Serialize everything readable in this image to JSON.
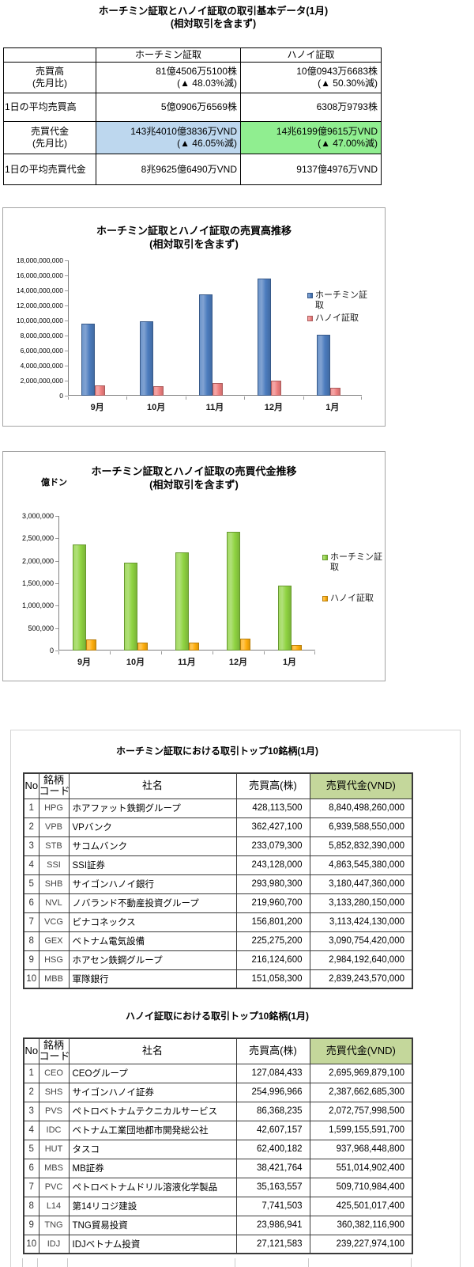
{
  "page_title": {
    "line1": "ホーチミン証取とハノイ証取の取引基本データ(1月)",
    "line2": "(相対取引を含まず)"
  },
  "colors": {
    "hcmc_value_highlight": "#BDD7EE",
    "hanoi_value_highlight": "#90EE90",
    "table_header_highlight": "#C4D79B"
  },
  "summary_table": {
    "col_headers": [
      "ホーチミン証取",
      "ハノイ証取"
    ],
    "rows": [
      {
        "label1": "売買高",
        "label2": "(先月比)",
        "hcmc1": "81億4506万5100株",
        "hcmc2": "(▲ 48.03%減)",
        "hanoi1": "10億0943万6683株",
        "hanoi2": "(▲ 50.30%減)"
      },
      {
        "label1": "1日の平均売買高",
        "hcmc1": "5億0906万6569株",
        "hanoi1": "6308万9793株"
      },
      {
        "label1": "売買代金",
        "label2": "(先月比)",
        "hcmc1": "143兆4010億3836万VND",
        "hcmc2": "(▲ 46.05%減)",
        "hanoi1": "14兆6199億9615万VND",
        "hanoi2": "(▲ 47.00%減)"
      },
      {
        "label1": "1日の平均売買代金",
        "hcmc1": "8兆9625億6490万VND",
        "hanoi1": "9137億4976万VND"
      }
    ]
  },
  "chart_data": [
    {
      "type": "bar",
      "title_line1": "ホーチミン証取とハノイ証取の売買高推移",
      "title_line2": "(相対取引を含まず)",
      "categories": [
        "9月",
        "10月",
        "11月",
        "12月",
        "1月"
      ],
      "series": [
        {
          "name": "ホーチミン証取",
          "color": "#4C7CBE",
          "values": [
            9550000000,
            9900000000,
            13500000000,
            15550000000,
            8100000000
          ]
        },
        {
          "name": "ハノイ証取",
          "color": "#EF8080",
          "values": [
            1350000000,
            1250000000,
            1650000000,
            2050000000,
            1000000000
          ]
        }
      ],
      "ylim": [
        0,
        18000000000
      ],
      "ytick_step": 2000000000,
      "grid": false,
      "legend_position": "right"
    },
    {
      "type": "bar",
      "title_line1": "ホーチミン証取とハノイ証取の売買代金推移",
      "title_line2": "(相対取引を含まず)",
      "unit_label": "億ドン",
      "categories": [
        "9月",
        "10月",
        "11月",
        "12月",
        "1月"
      ],
      "series": [
        {
          "name": "ホーチミン証取",
          "color": "#8FD341",
          "values": [
            2370000,
            1950000,
            2190000,
            2650000,
            1440000
          ]
        },
        {
          "name": "ハノイ証取",
          "color": "#FFAE0C",
          "values": [
            255000,
            175000,
            175000,
            265000,
            130000
          ]
        }
      ],
      "ylim": [
        0,
        3000000
      ],
      "ytick_step": 500000,
      "grid": false,
      "legend_position": "right"
    }
  ],
  "top10_hcmc": {
    "title": "ホーチミン証取における取引トップ10銘柄(1月)",
    "headers": {
      "no": "No",
      "code1": "銘柄",
      "code2": "コード",
      "name": "社名",
      "volume": "売買高(株)",
      "value": "売買代金(VND)"
    },
    "rows": [
      {
        "no": "1",
        "code": "HPG",
        "name": "ホアファット鉄鋼グループ",
        "volume": "428,113,500",
        "value": "8,840,498,260,000"
      },
      {
        "no": "2",
        "code": "VPB",
        "name": "VPバンク",
        "volume": "362,427,100",
        "value": "6,939,588,550,000"
      },
      {
        "no": "3",
        "code": "STB",
        "name": "サコムバンク",
        "volume": "233,079,300",
        "value": "5,852,832,390,000"
      },
      {
        "no": "4",
        "code": "SSI",
        "name": "SSI証券",
        "volume": "243,128,000",
        "value": "4,863,545,380,000"
      },
      {
        "no": "5",
        "code": "SHB",
        "name": "サイゴンハノイ銀行",
        "volume": "293,980,300",
        "value": "3,180,447,360,000"
      },
      {
        "no": "6",
        "code": "NVL",
        "name": "ノバランド不動産投資グループ",
        "volume": "219,960,700",
        "value": "3,133,280,150,000"
      },
      {
        "no": "7",
        "code": "VCG",
        "name": "ビナコネックス",
        "volume": "156,801,200",
        "value": "3,113,424,130,000"
      },
      {
        "no": "8",
        "code": "GEX",
        "name": "ベトナム電気設備",
        "volume": "225,275,200",
        "value": "3,090,754,420,000"
      },
      {
        "no": "9",
        "code": "HSG",
        "name": "ホアセン鉄鋼グループ",
        "volume": "216,124,600",
        "value": "2,984,192,640,000"
      },
      {
        "no": "10",
        "code": "MBB",
        "name": "軍隊銀行",
        "volume": "151,058,300",
        "value": "2,839,243,570,000"
      }
    ]
  },
  "top10_hanoi": {
    "title": "ハノイ証取における取引トップ10銘柄(1月)",
    "headers": {
      "no": "No",
      "code1": "銘柄",
      "code2": "コード",
      "name": "社名",
      "volume": "売買高(株)",
      "value": "売買代金(VND)"
    },
    "rows": [
      {
        "no": "1",
        "code": "CEO",
        "name": "CEOグループ",
        "volume": "127,084,433",
        "value": "2,695,969,879,100"
      },
      {
        "no": "2",
        "code": "SHS",
        "name": "サイゴンハノイ証券",
        "volume": "254,996,966",
        "value": "2,387,662,685,300"
      },
      {
        "no": "3",
        "code": "PVS",
        "name": "ペトロベトナムテクニカルサービス",
        "volume": "86,368,235",
        "value": "2,072,757,998,500"
      },
      {
        "no": "4",
        "code": "IDC",
        "name": "ベトナム工業団地都市開発総公社",
        "volume": "42,607,157",
        "value": "1,599,155,591,700"
      },
      {
        "no": "5",
        "code": "HUT",
        "name": "タスコ",
        "volume": "62,400,182",
        "value": "937,968,448,800"
      },
      {
        "no": "6",
        "code": "MBS",
        "name": "MB証券",
        "volume": "38,421,764",
        "value": "551,014,902,400"
      },
      {
        "no": "7",
        "code": "PVC",
        "name": "ペトロベトナムドリル溶液化学製品",
        "volume": "35,163,557",
        "value": "509,710,984,400"
      },
      {
        "no": "8",
        "code": "L14",
        "name": "第14リコジ建設",
        "volume": "7,741,503",
        "value": "425,501,017,400"
      },
      {
        "no": "9",
        "code": "TNG",
        "name": "TNG貿易投資",
        "volume": "23,986,941",
        "value": "360,382,116,900"
      },
      {
        "no": "10",
        "code": "IDJ",
        "name": "IDJベトナム投資",
        "volume": "27,121,583",
        "value": "239,227,974,100"
      }
    ]
  }
}
